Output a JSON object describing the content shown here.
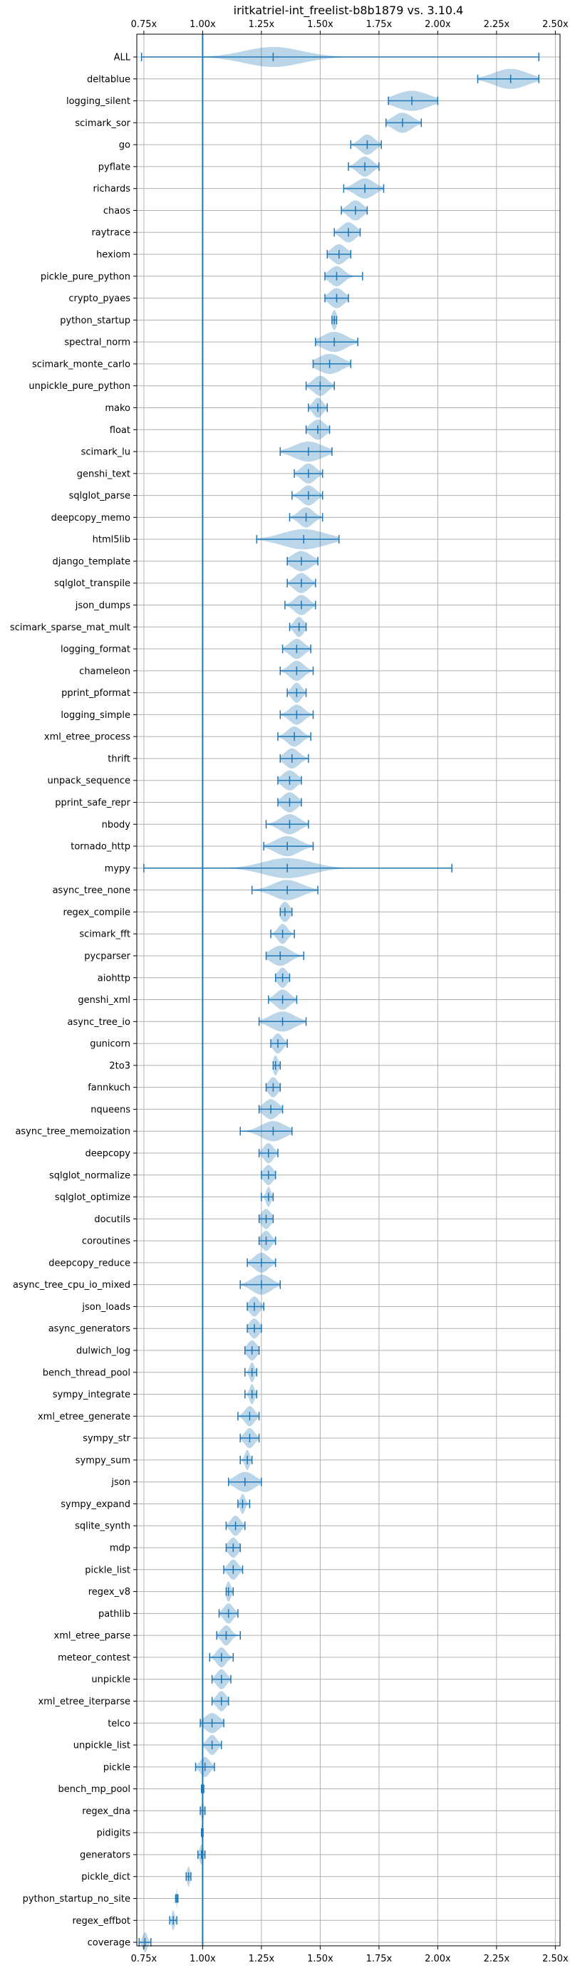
{
  "chart_data": {
    "type": "violin",
    "title": "iritkatriel-int_freelist-b8b1879 vs. 3.10.4",
    "xlabel": "",
    "ylabel": "",
    "xlim": [
      0.72,
      2.52
    ],
    "x_ticks": [
      0.75,
      1.0,
      1.25,
      1.5,
      1.75,
      2.0,
      2.25,
      2.5
    ],
    "x_tick_labels": [
      "0.75x",
      "1.00x",
      "1.25x",
      "1.50x",
      "1.75x",
      "2.00x",
      "2.25x",
      "2.50x"
    ],
    "reference_line": 1.0,
    "grid": true,
    "orientation": "horizontal",
    "colors": {
      "line": "#1f77b4",
      "fill": "#1f77b4",
      "grid": "#b0b0b0"
    },
    "benchmarks": [
      {
        "name": "ALL",
        "min": 0.74,
        "max": 2.43,
        "median": 1.3,
        "spread": 0.12
      },
      {
        "name": "deltablue",
        "min": 2.17,
        "max": 2.43,
        "median": 2.31,
        "spread": 0.07
      },
      {
        "name": "logging_silent",
        "min": 1.79,
        "max": 2.0,
        "median": 1.89,
        "spread": 0.07
      },
      {
        "name": "scimark_sor",
        "min": 1.78,
        "max": 1.93,
        "median": 1.85,
        "spread": 0.04
      },
      {
        "name": "go",
        "min": 1.63,
        "max": 1.76,
        "median": 1.7,
        "spread": 0.03
      },
      {
        "name": "pyflate",
        "min": 1.62,
        "max": 1.75,
        "median": 1.69,
        "spread": 0.03
      },
      {
        "name": "richards",
        "min": 1.6,
        "max": 1.77,
        "median": 1.69,
        "spread": 0.04
      },
      {
        "name": "chaos",
        "min": 1.59,
        "max": 1.7,
        "median": 1.65,
        "spread": 0.03
      },
      {
        "name": "raytrace",
        "min": 1.56,
        "max": 1.67,
        "median": 1.62,
        "spread": 0.03
      },
      {
        "name": "hexiom",
        "min": 1.53,
        "max": 1.63,
        "median": 1.58,
        "spread": 0.03
      },
      {
        "name": "pickle_pure_python",
        "min": 1.52,
        "max": 1.68,
        "median": 1.57,
        "spread": 0.03
      },
      {
        "name": "crypto_pyaes",
        "min": 1.52,
        "max": 1.62,
        "median": 1.57,
        "spread": 0.03
      },
      {
        "name": "python_startup",
        "min": 1.55,
        "max": 1.57,
        "median": 1.56,
        "spread": 0.01
      },
      {
        "name": "spectral_norm",
        "min": 1.48,
        "max": 1.66,
        "median": 1.56,
        "spread": 0.05
      },
      {
        "name": "scimark_monte_carlo",
        "min": 1.47,
        "max": 1.63,
        "median": 1.54,
        "spread": 0.05
      },
      {
        "name": "unpickle_pure_python",
        "min": 1.44,
        "max": 1.56,
        "median": 1.5,
        "spread": 0.03
      },
      {
        "name": "mako",
        "min": 1.45,
        "max": 1.53,
        "median": 1.49,
        "spread": 0.02
      },
      {
        "name": "float",
        "min": 1.44,
        "max": 1.54,
        "median": 1.49,
        "spread": 0.03
      },
      {
        "name": "scimark_lu",
        "min": 1.33,
        "max": 1.55,
        "median": 1.45,
        "spread": 0.06
      },
      {
        "name": "genshi_text",
        "min": 1.39,
        "max": 1.51,
        "median": 1.45,
        "spread": 0.03
      },
      {
        "name": "sqlglot_parse",
        "min": 1.38,
        "max": 1.51,
        "median": 1.45,
        "spread": 0.03
      },
      {
        "name": "deepcopy_memo",
        "min": 1.37,
        "max": 1.51,
        "median": 1.44,
        "spread": 0.03
      },
      {
        "name": "html5lib",
        "min": 1.23,
        "max": 1.58,
        "median": 1.43,
        "spread": 0.09
      },
      {
        "name": "django_template",
        "min": 1.36,
        "max": 1.49,
        "median": 1.42,
        "spread": 0.04
      },
      {
        "name": "sqlglot_transpile",
        "min": 1.36,
        "max": 1.48,
        "median": 1.42,
        "spread": 0.03
      },
      {
        "name": "json_dumps",
        "min": 1.35,
        "max": 1.48,
        "median": 1.42,
        "spread": 0.03
      },
      {
        "name": "scimark_sparse_mat_mult",
        "min": 1.37,
        "max": 1.44,
        "median": 1.41,
        "spread": 0.02
      },
      {
        "name": "logging_format",
        "min": 1.34,
        "max": 1.46,
        "median": 1.4,
        "spread": 0.03
      },
      {
        "name": "chameleon",
        "min": 1.33,
        "max": 1.47,
        "median": 1.4,
        "spread": 0.03
      },
      {
        "name": "pprint_pformat",
        "min": 1.36,
        "max": 1.44,
        "median": 1.4,
        "spread": 0.02
      },
      {
        "name": "logging_simple",
        "min": 1.33,
        "max": 1.47,
        "median": 1.4,
        "spread": 0.03
      },
      {
        "name": "xml_etree_process",
        "min": 1.32,
        "max": 1.46,
        "median": 1.39,
        "spread": 0.03
      },
      {
        "name": "thrift",
        "min": 1.33,
        "max": 1.45,
        "median": 1.38,
        "spread": 0.03
      },
      {
        "name": "unpack_sequence",
        "min": 1.32,
        "max": 1.42,
        "median": 1.37,
        "spread": 0.03
      },
      {
        "name": "pprint_safe_repr",
        "min": 1.32,
        "max": 1.42,
        "median": 1.37,
        "spread": 0.03
      },
      {
        "name": "nbody",
        "min": 1.27,
        "max": 1.45,
        "median": 1.37,
        "spread": 0.04
      },
      {
        "name": "tornado_http",
        "min": 1.26,
        "max": 1.47,
        "median": 1.36,
        "spread": 0.05
      },
      {
        "name": "mypy",
        "min": 0.75,
        "max": 2.06,
        "median": 1.36,
        "spread": 0.1
      },
      {
        "name": "async_tree_none",
        "min": 1.21,
        "max": 1.49,
        "median": 1.36,
        "spread": 0.06
      },
      {
        "name": "regex_compile",
        "min": 1.33,
        "max": 1.38,
        "median": 1.35,
        "spread": 0.02
      },
      {
        "name": "scimark_fft",
        "min": 1.29,
        "max": 1.39,
        "median": 1.34,
        "spread": 0.02
      },
      {
        "name": "pycparser",
        "min": 1.27,
        "max": 1.43,
        "median": 1.33,
        "spread": 0.04
      },
      {
        "name": "aiohttp",
        "min": 1.31,
        "max": 1.37,
        "median": 1.34,
        "spread": 0.02
      },
      {
        "name": "genshi_xml",
        "min": 1.28,
        "max": 1.4,
        "median": 1.34,
        "spread": 0.03
      },
      {
        "name": "async_tree_io",
        "min": 1.24,
        "max": 1.44,
        "median": 1.34,
        "spread": 0.05
      },
      {
        "name": "gunicorn",
        "min": 1.29,
        "max": 1.36,
        "median": 1.32,
        "spread": 0.02
      },
      {
        "name": "2to3",
        "min": 1.3,
        "max": 1.33,
        "median": 1.31,
        "spread": 0.01
      },
      {
        "name": "fannkuch",
        "min": 1.27,
        "max": 1.33,
        "median": 1.3,
        "spread": 0.02
      },
      {
        "name": "nqueens",
        "min": 1.24,
        "max": 1.34,
        "median": 1.29,
        "spread": 0.03
      },
      {
        "name": "async_tree_memoization",
        "min": 1.16,
        "max": 1.38,
        "median": 1.3,
        "spread": 0.05
      },
      {
        "name": "deepcopy",
        "min": 1.24,
        "max": 1.32,
        "median": 1.28,
        "spread": 0.02
      },
      {
        "name": "sqlglot_normalize",
        "min": 1.25,
        "max": 1.31,
        "median": 1.28,
        "spread": 0.02
      },
      {
        "name": "sqlglot_optimize",
        "min": 1.25,
        "max": 1.3,
        "median": 1.28,
        "spread": 0.01
      },
      {
        "name": "docutils",
        "min": 1.24,
        "max": 1.3,
        "median": 1.27,
        "spread": 0.02
      },
      {
        "name": "coroutines",
        "min": 1.24,
        "max": 1.31,
        "median": 1.27,
        "spread": 0.02
      },
      {
        "name": "deepcopy_reduce",
        "min": 1.19,
        "max": 1.31,
        "median": 1.25,
        "spread": 0.03
      },
      {
        "name": "async_tree_cpu_io_mixed",
        "min": 1.16,
        "max": 1.33,
        "median": 1.25,
        "spread": 0.04
      },
      {
        "name": "json_loads",
        "min": 1.19,
        "max": 1.26,
        "median": 1.22,
        "spread": 0.02
      },
      {
        "name": "async_generators",
        "min": 1.19,
        "max": 1.25,
        "median": 1.22,
        "spread": 0.02
      },
      {
        "name": "dulwich_log",
        "min": 1.18,
        "max": 1.24,
        "median": 1.21,
        "spread": 0.02
      },
      {
        "name": "bench_thread_pool",
        "min": 1.18,
        "max": 1.23,
        "median": 1.21,
        "spread": 0.01
      },
      {
        "name": "sympy_integrate",
        "min": 1.18,
        "max": 1.23,
        "median": 1.21,
        "spread": 0.01
      },
      {
        "name": "xml_etree_generate",
        "min": 1.15,
        "max": 1.24,
        "median": 1.2,
        "spread": 0.02
      },
      {
        "name": "sympy_str",
        "min": 1.16,
        "max": 1.24,
        "median": 1.2,
        "spread": 0.02
      },
      {
        "name": "sympy_sum",
        "min": 1.16,
        "max": 1.21,
        "median": 1.19,
        "spread": 0.01
      },
      {
        "name": "json",
        "min": 1.11,
        "max": 1.25,
        "median": 1.18,
        "spread": 0.04
      },
      {
        "name": "sympy_expand",
        "min": 1.15,
        "max": 1.2,
        "median": 1.17,
        "spread": 0.01
      },
      {
        "name": "sqlite_synth",
        "min": 1.1,
        "max": 1.18,
        "median": 1.14,
        "spread": 0.02
      },
      {
        "name": "mdp",
        "min": 1.1,
        "max": 1.16,
        "median": 1.13,
        "spread": 0.02
      },
      {
        "name": "pickle_list",
        "min": 1.09,
        "max": 1.17,
        "median": 1.13,
        "spread": 0.02
      },
      {
        "name": "regex_v8",
        "min": 1.1,
        "max": 1.13,
        "median": 1.11,
        "spread": 0.01
      },
      {
        "name": "pathlib",
        "min": 1.07,
        "max": 1.15,
        "median": 1.11,
        "spread": 0.02
      },
      {
        "name": "xml_etree_parse",
        "min": 1.06,
        "max": 1.16,
        "median": 1.1,
        "spread": 0.02
      },
      {
        "name": "meteor_contest",
        "min": 1.03,
        "max": 1.13,
        "median": 1.08,
        "spread": 0.02
      },
      {
        "name": "unpickle",
        "min": 1.04,
        "max": 1.12,
        "median": 1.08,
        "spread": 0.02
      },
      {
        "name": "xml_etree_iterparse",
        "min": 1.04,
        "max": 1.11,
        "median": 1.08,
        "spread": 0.02
      },
      {
        "name": "telco",
        "min": 0.99,
        "max": 1.09,
        "median": 1.04,
        "spread": 0.03
      },
      {
        "name": "unpickle_list",
        "min": 1.0,
        "max": 1.08,
        "median": 1.04,
        "spread": 0.02
      },
      {
        "name": "pickle",
        "min": 0.97,
        "max": 1.05,
        "median": 1.01,
        "spread": 0.02
      },
      {
        "name": "bench_mp_pool",
        "min": 0.995,
        "max": 1.005,
        "median": 1.0,
        "spread": 0.003
      },
      {
        "name": "regex_dna",
        "min": 0.99,
        "max": 1.01,
        "median": 1.0,
        "spread": 0.005
      },
      {
        "name": "pidigits",
        "min": 0.995,
        "max": 1.002,
        "median": 0.998,
        "spread": 0.002
      },
      {
        "name": "generators",
        "min": 0.98,
        "max": 1.01,
        "median": 0.995,
        "spread": 0.008
      },
      {
        "name": "pickle_dict",
        "min": 0.93,
        "max": 0.95,
        "median": 0.94,
        "spread": 0.006
      },
      {
        "name": "python_startup_no_site",
        "min": 0.885,
        "max": 0.895,
        "median": 0.89,
        "spread": 0.002
      },
      {
        "name": "regex_effbot",
        "min": 0.86,
        "max": 0.89,
        "median": 0.875,
        "spread": 0.006
      },
      {
        "name": "coverage",
        "min": 0.73,
        "max": 0.78,
        "median": 0.755,
        "spread": 0.01
      }
    ]
  }
}
